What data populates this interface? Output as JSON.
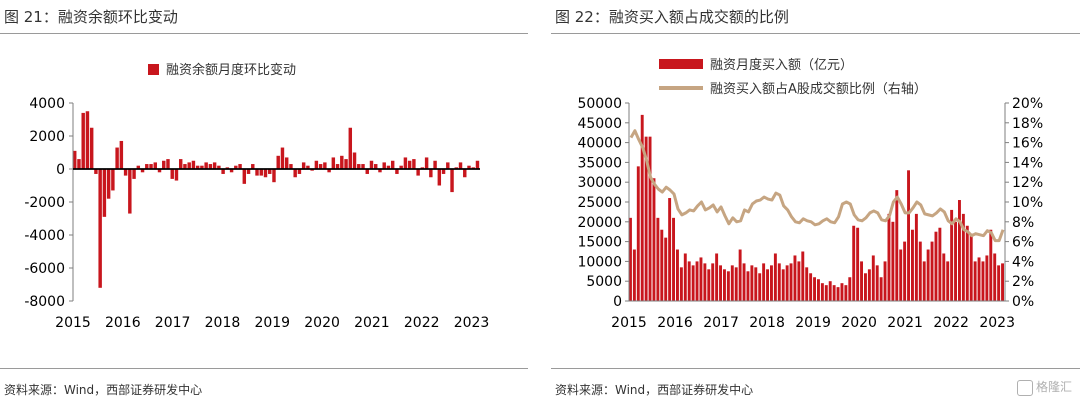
{
  "figures": [
    {
      "title": "图 21：融资余额环比变动",
      "source": "资料来源：Wind，西部证券研发中心"
    },
    {
      "title": "图 22：融资买入额占成交额的比例",
      "source": "资料来源：Wind，西部证券研发中心"
    }
  ],
  "watermark": "格隆汇",
  "chart_data": [
    {
      "type": "bar",
      "title": "",
      "legend": [
        "融资余额月度环比变动"
      ],
      "legend_placement": "top-center",
      "grid": false,
      "xlim": [
        2015,
        2023.17
      ],
      "ylim": [
        -8000,
        4000
      ],
      "yticks": [
        -8000,
        -6000,
        -4000,
        -2000,
        0,
        2000,
        4000
      ],
      "xticks": [
        "2015",
        "2016",
        "2017",
        "2018",
        "2019",
        "2020",
        "2021",
        "2022",
        "2023"
      ],
      "color": "#c8161d",
      "series": [
        {
          "name": "融资余额月度环比变动",
          "values": [
            1100,
            600,
            3400,
            3500,
            2500,
            -300,
            -7200,
            -2900,
            -1800,
            -1300,
            1300,
            1700,
            -400,
            -2700,
            -600,
            200,
            -200,
            300,
            300,
            400,
            -200,
            500,
            600,
            -600,
            -700,
            600,
            300,
            400,
            500,
            200,
            200,
            400,
            300,
            400,
            200,
            -300,
            100,
            -200,
            200,
            300,
            -900,
            -300,
            300,
            -400,
            -400,
            -500,
            -300,
            -800,
            800,
            1300,
            700,
            300,
            -500,
            -300,
            400,
            200,
            -100,
            500,
            300,
            400,
            -200,
            700,
            300,
            800,
            600,
            2500,
            1000,
            300,
            300,
            -300,
            500,
            300,
            -200,
            400,
            200,
            500,
            -300,
            200,
            700,
            500,
            600,
            -400,
            100,
            700,
            -500,
            500,
            -1000,
            -300,
            400,
            -1400,
            100,
            400,
            -500,
            200,
            100,
            500
          ]
        }
      ]
    },
    {
      "type": "bar+line",
      "title": "",
      "legend": [
        "融资月度买入额（亿元）",
        "融资买入额占A股成交额比例（右轴）"
      ],
      "legend_placement": "top-center",
      "grid": false,
      "xlim": [
        2015,
        2023.17
      ],
      "ylim_left": [
        0,
        50000
      ],
      "ylim_right": [
        0,
        0.2
      ],
      "yticks_left": [
        0,
        5000,
        10000,
        15000,
        20000,
        25000,
        30000,
        35000,
        40000,
        45000,
        50000
      ],
      "yticks_right": [
        "0%",
        "2%",
        "4%",
        "6%",
        "8%",
        "10%",
        "12%",
        "14%",
        "16%",
        "18%",
        "20%"
      ],
      "xticks": [
        "2015",
        "2016",
        "2017",
        "2018",
        "2019",
        "2020",
        "2021",
        "2022",
        "2023"
      ],
      "series": [
        {
          "name": "融资月度买入额（亿元）",
          "type": "bar",
          "axis": "left",
          "color": "#c8161d",
          "values": [
            21000,
            13000,
            34000,
            47000,
            41500,
            41500,
            31000,
            21000,
            18000,
            16000,
            26000,
            21000,
            13000,
            8500,
            12000,
            10000,
            9000,
            10000,
            11000,
            9500,
            8000,
            9500,
            12000,
            9000,
            8000,
            7500,
            9000,
            8500,
            13000,
            9500,
            7500,
            9000,
            8500,
            7000,
            9500,
            8000,
            9000,
            12000,
            9500,
            8000,
            9000,
            9500,
            11500,
            10000,
            12500,
            8500,
            7000,
            6000,
            5500,
            4500,
            4000,
            5000,
            4000,
            3500,
            4500,
            4000,
            6000,
            19000,
            18500,
            10000,
            7000,
            8000,
            11500,
            9000,
            6000,
            10000,
            22000,
            20000,
            28000,
            13000,
            15000,
            33000,
            18000,
            22000,
            15000,
            10000,
            13000,
            15000,
            17500,
            18500,
            12000,
            10000,
            23000,
            20000,
            25500,
            22000,
            19000,
            17000,
            10000,
            11000,
            10000,
            11500,
            18000,
            12000,
            9000,
            9500
          ]
        },
        {
          "name": "融资买入额占A股成交额比例（右轴）",
          "type": "line",
          "axis": "right",
          "color": "#c6a582",
          "values": [
            0.165,
            0.172,
            0.163,
            0.155,
            0.142,
            0.125,
            0.118,
            0.113,
            0.11,
            0.115,
            0.112,
            0.108,
            0.093,
            0.087,
            0.089,
            0.092,
            0.091,
            0.096,
            0.1,
            0.092,
            0.094,
            0.097,
            0.09,
            0.095,
            0.086,
            0.078,
            0.084,
            0.08,
            0.081,
            0.092,
            0.09,
            0.098,
            0.101,
            0.102,
            0.105,
            0.103,
            0.102,
            0.109,
            0.107,
            0.096,
            0.092,
            0.085,
            0.08,
            0.079,
            0.083,
            0.081,
            0.08,
            0.077,
            0.078,
            0.081,
            0.083,
            0.08,
            0.079,
            0.085,
            0.098,
            0.1,
            0.098,
            0.087,
            0.082,
            0.081,
            0.084,
            0.089,
            0.091,
            0.089,
            0.082,
            0.081,
            0.086,
            0.1,
            0.105,
            0.098,
            0.089,
            0.089,
            0.094,
            0.1,
            0.097,
            0.088,
            0.087,
            0.086,
            0.089,
            0.093,
            0.09,
            0.081,
            0.078,
            0.083,
            0.08,
            0.072,
            0.07,
            0.066,
            0.068,
            0.067,
            0.066,
            0.071,
            0.069,
            0.061,
            0.061,
            0.072
          ]
        }
      ]
    }
  ]
}
